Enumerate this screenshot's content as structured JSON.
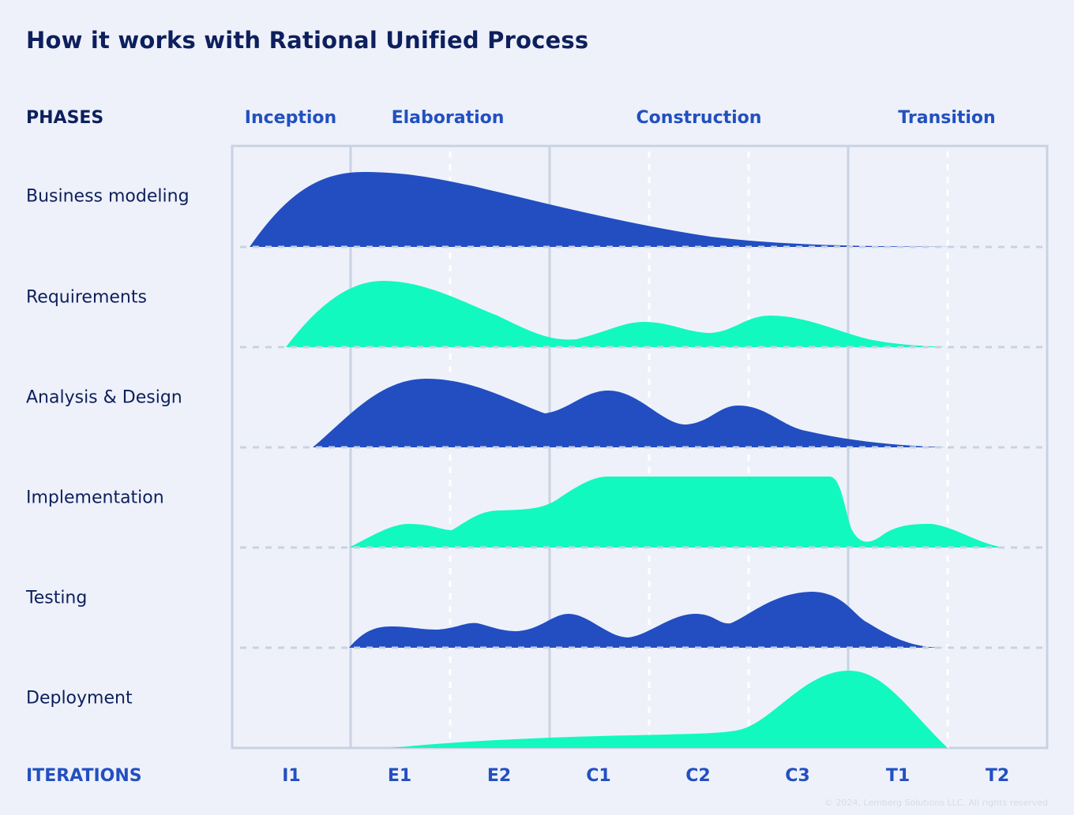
{
  "title": "How it works with Rational Unified Process",
  "phases_heading": "PHASES",
  "phases": [
    "Inception",
    "Elaboration",
    "Construction",
    "Transition"
  ],
  "disciplines": [
    "Business modeling",
    "Requirements",
    "Analysis & Design",
    "Implementation",
    "Testing",
    "Deployment"
  ],
  "iterations_heading": "ITERATIONS",
  "iterations": [
    "I1",
    "E1",
    "E2",
    "C1",
    "C2",
    "C3",
    "T1",
    "T2"
  ],
  "copyright": "© 2024, Lemberg Solutions LLC. All rights reserved",
  "colors": {
    "blue": "#224ec2",
    "green": "#12f9bf",
    "background": "#eef1fa",
    "grid": "#c9d2e2"
  }
}
